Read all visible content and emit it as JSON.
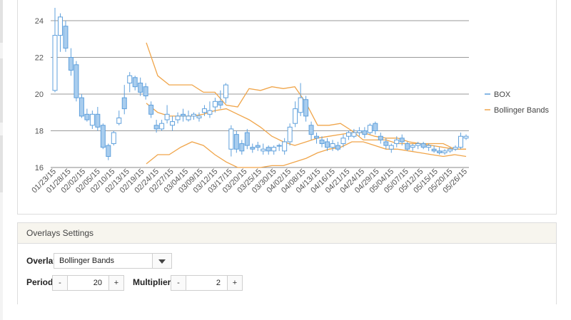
{
  "colors": {
    "candle": "#5fa0dc",
    "candle_fill": "#a9cdee",
    "bands": "#f0a54a",
    "grid": "#9a9a9a"
  },
  "legend": {
    "series1": "BOX",
    "series2": "Bollinger Bands"
  },
  "overlays": {
    "title": "Overlays Settings",
    "overlay_label": "Overlay",
    "overlay_value": "Bollinger Bands",
    "period_label": "Period",
    "period_value": "20",
    "multiplier_label": "Multiplier",
    "multiplier_value": "2",
    "minus": "-",
    "plus": "+"
  },
  "chart_data": {
    "type": "candlestick",
    "ylim": [
      16,
      25
    ],
    "yticks": [
      16,
      18,
      20,
      22,
      24
    ],
    "xtick_labels": [
      "01/23/15",
      "01/28/15",
      "02/02/15",
      "02/05/15",
      "02/10/15",
      "02/13/15",
      "02/19/15",
      "02/24/15",
      "02/27/15",
      "03/04/15",
      "03/09/15",
      "03/12/15",
      "03/17/15",
      "03/20/15",
      "03/25/15",
      "03/30/15",
      "04/02/15",
      "04/08/15",
      "04/13/15",
      "04/16/15",
      "04/21/15",
      "04/24/15",
      "04/29/15",
      "05/04/15",
      "05/07/15",
      "05/12/15",
      "05/15/15",
      "05/20/15",
      "05/26/15"
    ],
    "candles": [
      [
        20.2,
        23.2,
        24.7,
        20.1
      ],
      [
        23.2,
        24.2,
        24.4,
        22.3
      ],
      [
        23.7,
        22.5,
        24.0,
        22.3
      ],
      [
        22.0,
        21.3,
        22.5,
        21.0
      ],
      [
        21.6,
        19.8,
        21.8,
        19.6
      ],
      [
        19.8,
        18.8,
        20.0,
        18.7
      ],
      [
        18.9,
        18.6,
        19.2,
        18.5
      ],
      [
        18.3,
        18.9,
        19.1,
        18.1
      ],
      [
        18.9,
        18.2,
        19.3,
        18.0
      ],
      [
        18.3,
        17.1,
        18.4,
        17.0
      ],
      [
        17.2,
        16.6,
        17.3,
        16.4
      ],
      [
        17.3,
        17.9,
        18.0,
        17.2
      ],
      [
        18.4,
        18.7,
        19.1,
        18.3
      ],
      [
        19.8,
        19.2,
        20.5,
        18.9
      ],
      [
        20.6,
        21.0,
        21.2,
        20.1
      ],
      [
        20.9,
        20.4,
        21.0,
        20.2
      ],
      [
        20.6,
        20.1,
        20.9,
        19.9
      ],
      [
        20.4,
        19.9,
        20.6,
        19.7
      ],
      [
        19.4,
        18.9,
        19.6,
        18.7
      ],
      [
        18.3,
        18.1,
        18.6,
        17.9
      ],
      [
        18.1,
        18.4,
        18.6,
        18.0
      ],
      [
        18.6,
        18.9,
        19.4,
        18.4
      ],
      [
        18.3,
        18.5,
        18.8,
        18.0
      ],
      [
        18.6,
        18.8,
        19.0,
        18.4
      ],
      [
        18.9,
        18.8,
        19.2,
        18.5
      ],
      [
        18.6,
        18.8,
        19.1,
        18.5
      ],
      [
        18.8,
        18.9,
        19.0,
        18.6
      ],
      [
        18.7,
        18.8,
        19.0,
        18.5
      ],
      [
        19.0,
        19.2,
        19.4,
        18.8
      ],
      [
        18.9,
        19.1,
        19.6,
        18.7
      ],
      [
        19.3,
        19.6,
        19.8,
        19.0
      ],
      [
        19.6,
        19.4,
        20.2,
        19.2
      ],
      [
        19.8,
        20.5,
        20.6,
        19.5
      ],
      [
        17.0,
        18.1,
        18.3,
        16.6
      ],
      [
        17.8,
        17.0,
        18.0,
        16.8
      ],
      [
        17.3,
        16.9,
        17.5,
        16.7
      ],
      [
        17.9,
        17.2,
        18.1,
        17.0
      ],
      [
        17.1,
        17.0,
        17.3,
        16.8
      ],
      [
        17.2,
        17.1,
        17.4,
        16.9
      ],
      [
        16.9,
        17.0,
        17.3,
        16.7
      ],
      [
        17.1,
        16.9,
        17.2,
        16.7
      ],
      [
        16.9,
        17.1,
        17.2,
        16.7
      ],
      [
        17.2,
        17.2,
        17.3,
        16.9
      ],
      [
        16.9,
        17.4,
        17.6,
        16.7
      ],
      [
        17.4,
        18.2,
        18.4,
        17.2
      ],
      [
        18.4,
        19.2,
        19.6,
        18.2
      ],
      [
        19.0,
        19.8,
        20.6,
        18.8
      ],
      [
        19.7,
        18.8,
        19.9,
        18.5
      ],
      [
        18.3,
        17.8,
        18.5,
        17.5
      ],
      [
        17.7,
        17.6,
        17.9,
        17.3
      ],
      [
        17.5,
        17.3,
        17.7,
        17.1
      ],
      [
        17.4,
        17.1,
        17.6,
        16.9
      ],
      [
        17.1,
        17.3,
        17.5,
        16.9
      ],
      [
        17.2,
        17.0,
        17.4,
        16.9
      ],
      [
        17.3,
        17.6,
        17.8,
        17.1
      ],
      [
        17.7,
        17.9,
        18.0,
        17.5
      ],
      [
        17.7,
        17.9,
        18.1,
        17.6
      ],
      [
        17.9,
        18.0,
        18.2,
        17.7
      ],
      [
        18.0,
        17.8,
        18.2,
        17.6
      ],
      [
        17.9,
        18.3,
        18.4,
        17.8
      ],
      [
        18.4,
        18.0,
        18.5,
        17.8
      ],
      [
        17.7,
        17.5,
        17.9,
        17.3
      ],
      [
        17.4,
        17.2,
        17.6,
        17.0
      ],
      [
        17.0,
        17.2,
        17.3,
        16.8
      ],
      [
        17.3,
        17.5,
        17.7,
        17.1
      ],
      [
        17.6,
        17.4,
        17.8,
        17.2
      ],
      [
        17.3,
        17.0,
        17.4,
        16.9
      ],
      [
        17.1,
        17.2,
        17.3,
        16.9
      ],
      [
        17.2,
        17.3,
        17.4,
        17.0
      ],
      [
        17.3,
        17.1,
        17.4,
        17.0
      ],
      [
        17.1,
        17.2,
        17.3,
        16.9
      ],
      [
        17.0,
        16.9,
        17.2,
        16.8
      ],
      [
        16.9,
        16.8,
        17.1,
        16.7
      ],
      [
        16.8,
        16.9,
        17.0,
        16.7
      ],
      [
        16.9,
        17.0,
        17.1,
        16.8
      ],
      [
        17.0,
        17.1,
        17.2,
        16.9
      ],
      [
        17.1,
        17.7,
        17.9,
        17.0
      ],
      [
        17.6,
        17.7,
        17.8,
        17.5
      ]
    ],
    "bollinger": {
      "upper": [
        22.8,
        21.0,
        20.5,
        20.5,
        20.5,
        20.1,
        20.1,
        19.4,
        19.3,
        20.3,
        20.2,
        20.4,
        20.3,
        20.4,
        19.5,
        18.3,
        18.3,
        18.4,
        18.0,
        17.5,
        17.5,
        17.5,
        17.3,
        17.3,
        17.3,
        17.3,
        17.3,
        17.0,
        17.0
      ],
      "mid": [
        19.5,
        19.0,
        18.8,
        18.8,
        18.8,
        18.9,
        19.1,
        19.2,
        18.9,
        18.6,
        18.2,
        17.7,
        17.4,
        17.2,
        17.4,
        17.6,
        17.7,
        17.8,
        17.9,
        17.9,
        17.7,
        17.6,
        17.6,
        17.4,
        17.3,
        17.2,
        17.1,
        17.0,
        17.0
      ],
      "lower": [
        16.2,
        16.7,
        16.7,
        17.1,
        17.4,
        17.2,
        16.7,
        16.3,
        16.0,
        16.0,
        16.0,
        16.1,
        16.1,
        16.3,
        16.5,
        16.8,
        17.0,
        17.1,
        17.4,
        17.4,
        17.2,
        17.0,
        17.0,
        16.9,
        16.8,
        16.7,
        16.6,
        16.7,
        16.6
      ]
    }
  }
}
